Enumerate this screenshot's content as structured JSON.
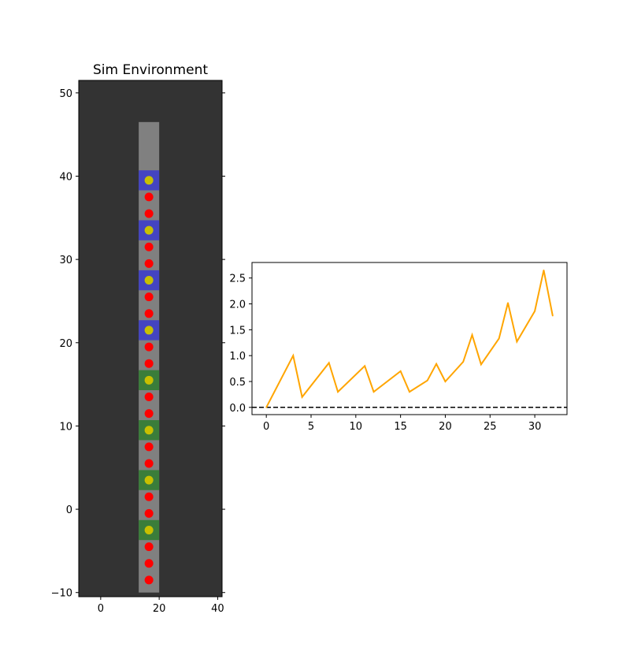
{
  "chart_data": [
    {
      "type": "scatter",
      "title": "Sim Environment",
      "xlabel": "",
      "ylabel": "",
      "xlim": [
        -7.5,
        41.5
      ],
      "ylim": [
        -10.5,
        51.5
      ],
      "xticks": [
        "0",
        "20",
        "40"
      ],
      "yticks": [
        "−10",
        "0",
        "10",
        "20",
        "30",
        "40",
        "50"
      ],
      "background_color": "#333333",
      "track": {
        "x_range": [
          13,
          20
        ],
        "y_range": [
          -10,
          46.5
        ],
        "color": "#808080"
      },
      "blue_zones": [
        39.5,
        33.5,
        27.5,
        21.5
      ],
      "green_zones": [
        15.5,
        9.5,
        3.5,
        -2.5
      ],
      "blue_color": "#3a3acc",
      "green_color": "#2e7d2e",
      "zone_x_range": [
        13,
        20
      ],
      "zone_half_height": 1.2,
      "point_x": 16.5,
      "yellow_points_y": [
        39.5,
        33.5,
        27.5,
        21.5,
        15.5,
        9.5,
        3.5,
        -2.5
      ],
      "red_points_y": [
        37.5,
        35.5,
        31.5,
        29.5,
        25.5,
        23.5,
        19.5,
        17.5,
        13.5,
        11.5,
        7.5,
        5.5,
        1.5,
        -0.5,
        -4.5,
        -6.5,
        -8.5
      ],
      "yellow_color": "#c8c000",
      "red_color": "#ff0000",
      "grid": false
    },
    {
      "type": "line",
      "title": "",
      "xlabel": "",
      "ylabel": "",
      "xlim": [
        -1.6,
        33.6
      ],
      "ylim": [
        -0.14,
        2.8
      ],
      "xticks": [
        "0",
        "5",
        "10",
        "15",
        "20",
        "25",
        "30"
      ],
      "yticks": [
        "0.0",
        "0.5",
        "1.0",
        "1.5",
        "2.0",
        "2.5"
      ],
      "grid": false,
      "reference_line": {
        "y": 0,
        "style": "dashed",
        "color": "#000000"
      },
      "series": [
        {
          "color": "#ffa500",
          "x": [
            0,
            3,
            4,
            7,
            8,
            11,
            12,
            15,
            16,
            18,
            19,
            20,
            22,
            23,
            24,
            26,
            27,
            28,
            30,
            31,
            32
          ],
          "values": [
            0.0,
            1.0,
            0.2,
            0.86,
            0.3,
            0.8,
            0.3,
            0.7,
            0.3,
            0.52,
            0.84,
            0.5,
            0.88,
            1.4,
            0.83,
            1.33,
            2.02,
            1.27,
            1.86,
            2.65,
            1.77
          ]
        }
      ]
    }
  ]
}
